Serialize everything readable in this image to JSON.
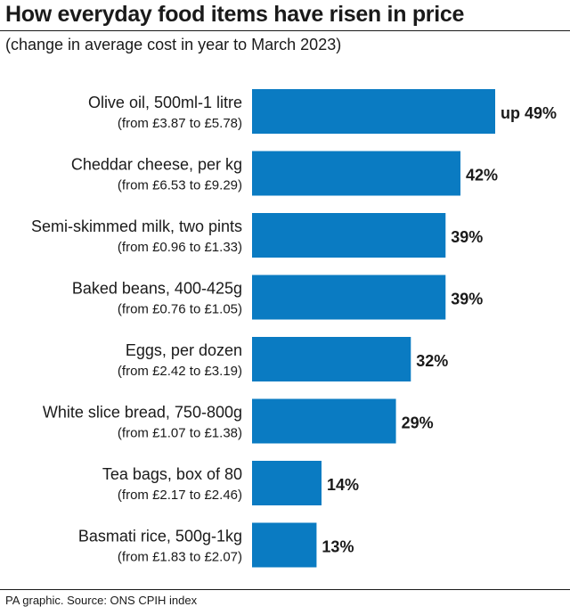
{
  "title": "How everyday food items have risen in price",
  "subtitle": "(change in average cost in year to March 2023)",
  "source": "PA graphic. Source: ONS CPIH index",
  "colors": {
    "bar": "#0a7bc2",
    "text": "#1a1a1a"
  },
  "chart_data": {
    "type": "bar",
    "orientation": "horizontal",
    "title": "How everyday food items have risen in price",
    "subtitle": "(change in average cost in year to March 2023)",
    "xlabel": "",
    "ylabel": "",
    "grid": false,
    "categories": [
      "Olive oil, 500ml-1 litre",
      "Cheddar cheese, per kg",
      "Semi-skimmed milk, two pints",
      "Baked beans, 400-425g",
      "Eggs, per dozen",
      "White slice bread, 750-800g",
      "Tea bags, box of 80",
      "Basmati rice, 500g-1kg"
    ],
    "sublabels": [
      "(from £3.87 to £5.78)",
      "(from £6.53 to £9.29)",
      "(from £0.96 to £1.33)",
      "(from £0.76 to £1.05)",
      "(from £2.42 to £3.19)",
      "(from £1.07 to £1.38)",
      "(from £2.17 to £2.46)",
      "(from £1.83 to £2.07)"
    ],
    "values": [
      49,
      42,
      39,
      39,
      32,
      29,
      14,
      13
    ],
    "value_labels": [
      "up 49%",
      "42%",
      "39%",
      "39%",
      "32%",
      "29%",
      "14%",
      "13%"
    ]
  }
}
